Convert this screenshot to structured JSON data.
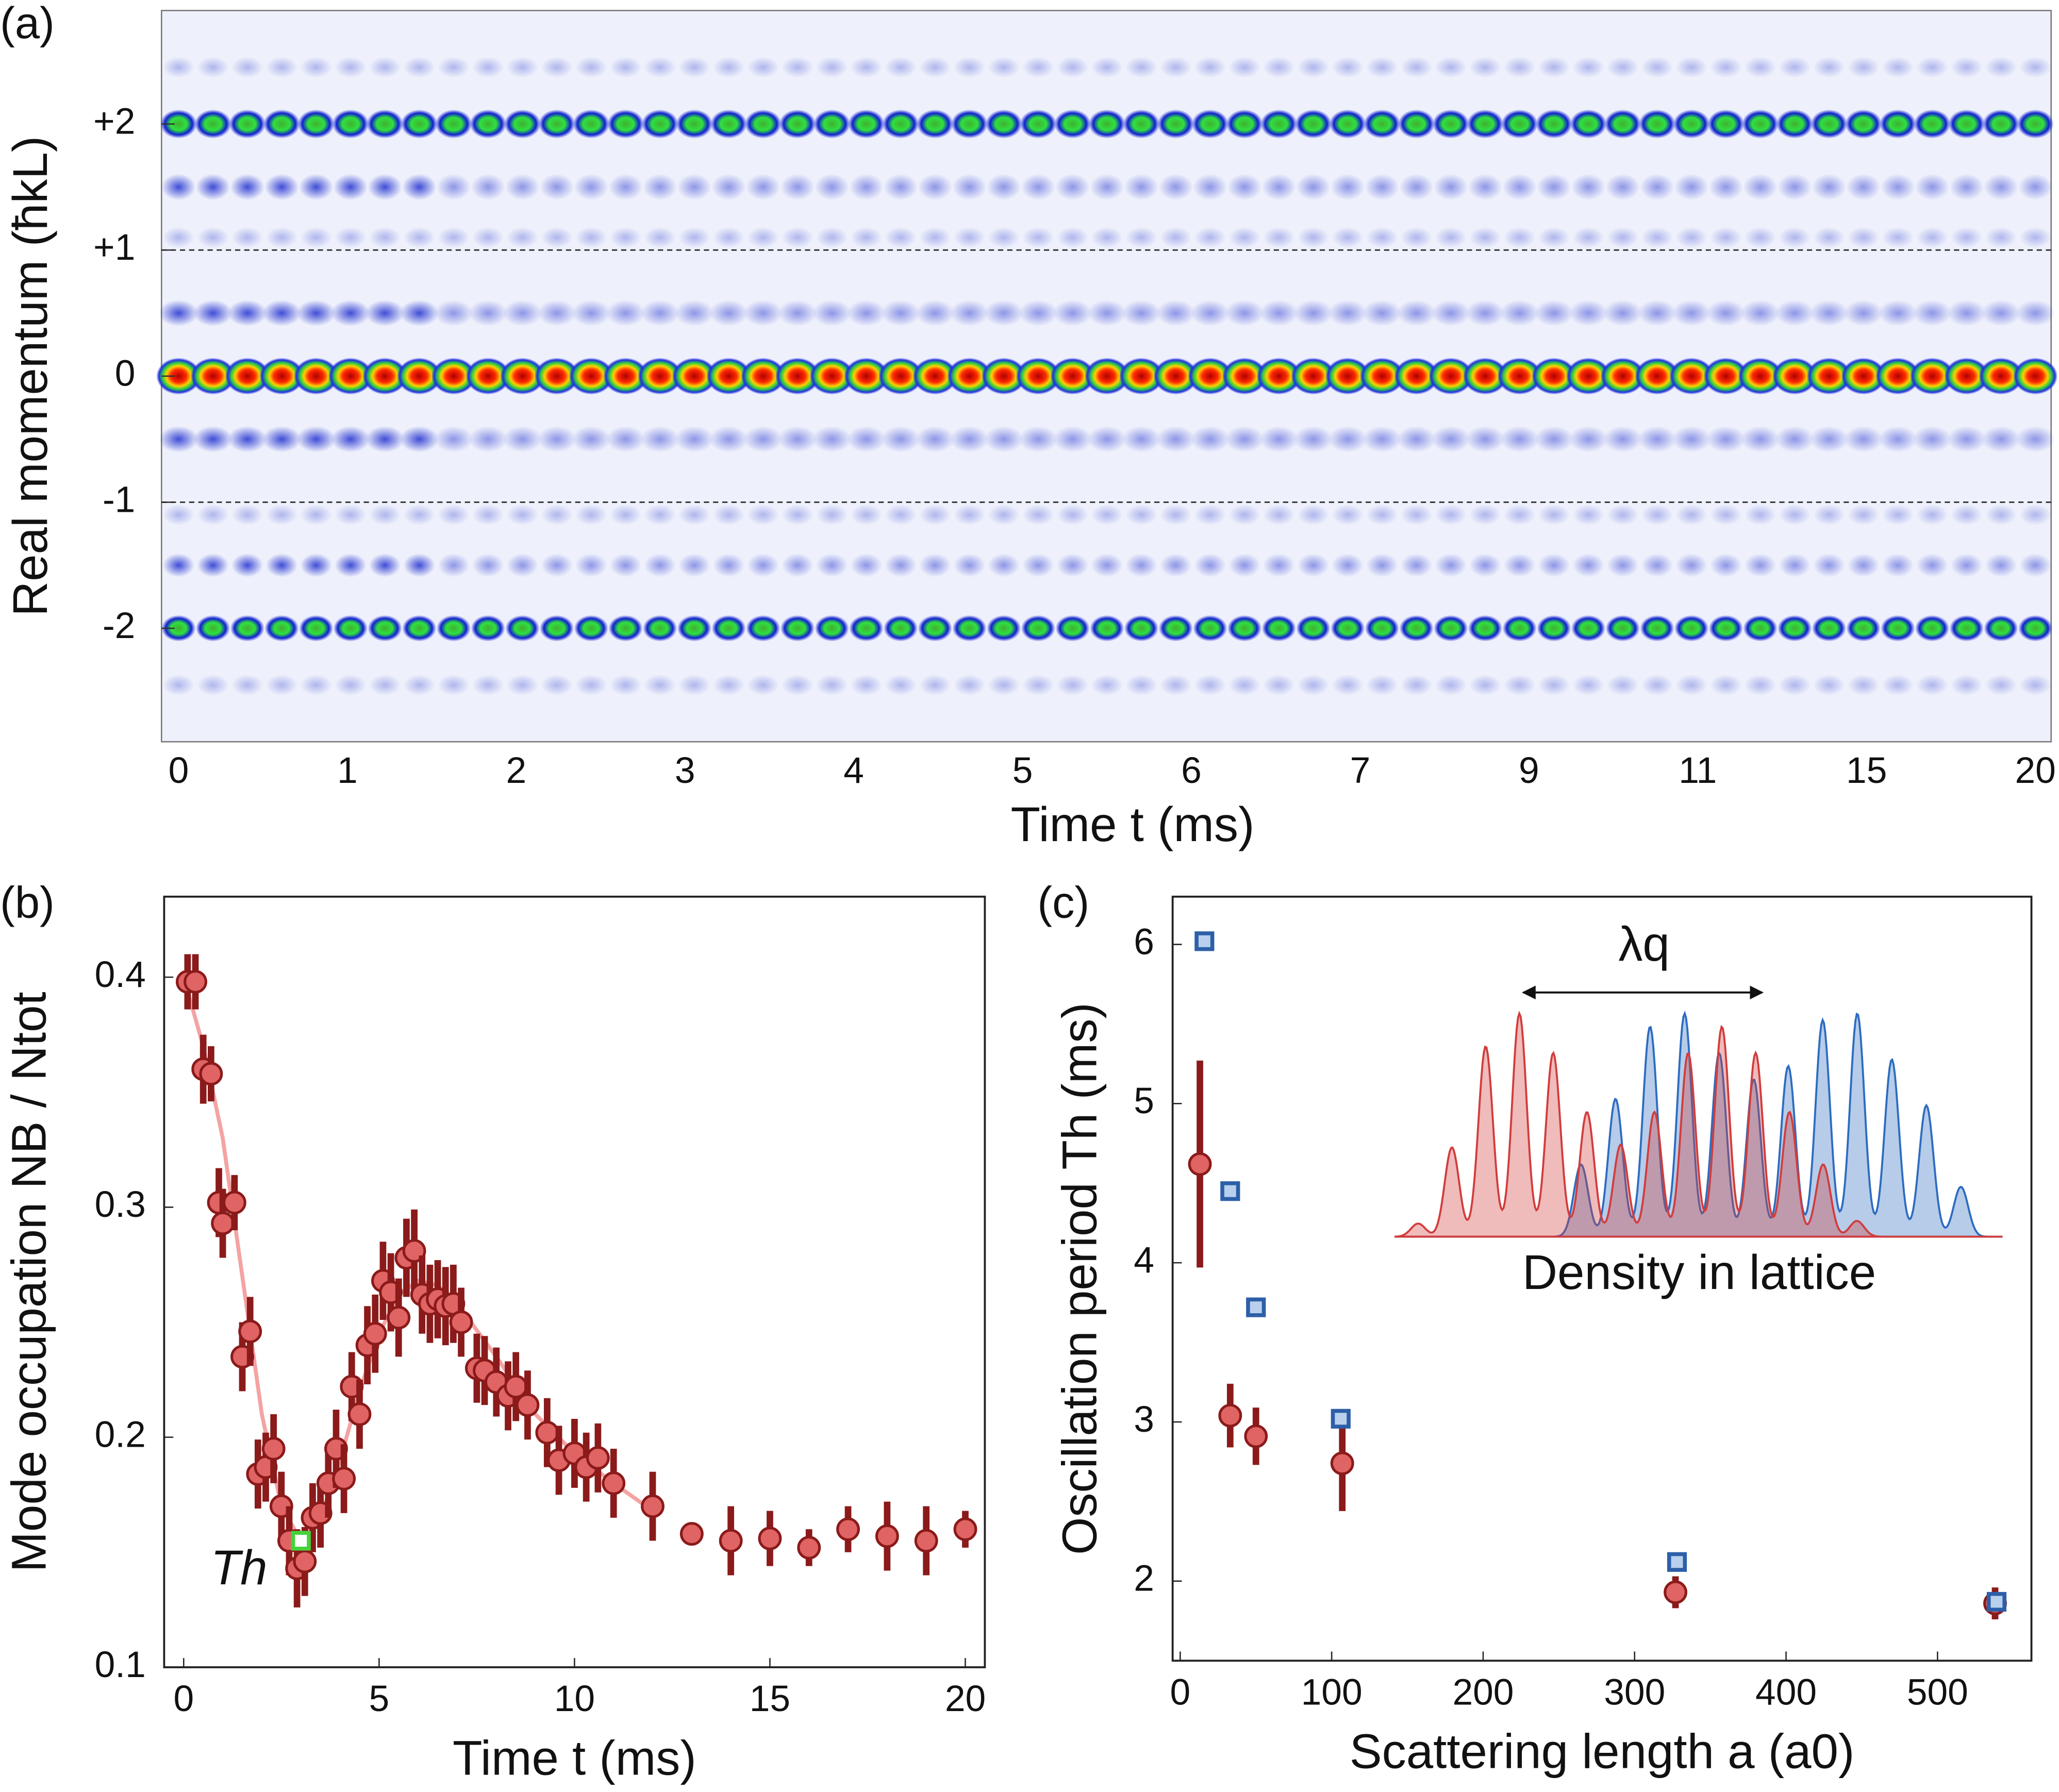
{
  "chart_data": [
    {
      "type": "image",
      "label": "(a)",
      "y_label": "Real momentum (ħkL)",
      "x_label": "Time t (ms)",
      "categories": [
        "0",
        "1",
        "2",
        "3",
        "4",
        "5",
        "6",
        "7",
        "9",
        "11",
        "15",
        "20"
      ],
      "ylim": [
        -2.9,
        2.9
      ],
      "yticks": [
        {
          "value": 2,
          "label": "+2"
        },
        {
          "value": 1,
          "label": "+1"
        },
        0,
        -1,
        -2
      ]
    },
    {
      "type": "scatter",
      "label": "(b)",
      "y_label": "Mode occupation NB / Ntot",
      "x_label": "Time t (ms)",
      "annotation": "Th",
      "xlim": [
        -0.5,
        20.5
      ],
      "xticks": [
        0,
        5,
        10,
        15,
        20
      ],
      "ylim": [
        0.1,
        0.435
      ],
      "yticks": [
        0.1,
        0.2,
        0.3,
        0.4
      ],
      "series": [
        {
          "marker": "line",
          "color": "#f4a3a3",
          "x": [
            0,
            0.5,
            1,
            1.5,
            2,
            2.5,
            3,
            3.5,
            4,
            4.5,
            5,
            5.5,
            6,
            6.5,
            7,
            8,
            9,
            10,
            11,
            12
          ],
          "values": [
            0.4,
            0.37,
            0.33,
            0.27,
            0.21,
            0.17,
            0.155,
            0.165,
            0.19,
            0.22,
            0.245,
            0.262,
            0.268,
            0.266,
            0.258,
            0.235,
            0.21,
            0.193,
            0.18,
            0.168
          ]
        },
        {
          "marker": "circle",
          "color": "#e06464",
          "edge_color": "#8b1a1a",
          "x": [
            0.1,
            0.3,
            0.5,
            0.7,
            0.9,
            1.0,
            1.3,
            1.5,
            1.7,
            1.9,
            2.1,
            2.3,
            2.5,
            2.7,
            2.9,
            3.1,
            3.3,
            3.5,
            3.7,
            3.9,
            4.1,
            4.3,
            4.5,
            4.7,
            4.9,
            5.1,
            5.3,
            5.5,
            5.7,
            5.9,
            6.1,
            6.3,
            6.5,
            6.7,
            6.9,
            7.1,
            7.5,
            7.7,
            8.0,
            8.3,
            8.5,
            8.8,
            9.3,
            9.6,
            10.0,
            10.3,
            10.6,
            11.0,
            12,
            13,
            14,
            15,
            16,
            17,
            18,
            19,
            20
          ],
          "values": [
            0.398,
            0.398,
            0.36,
            0.358,
            0.302,
            0.293,
            0.302,
            0.235,
            0.246,
            0.184,
            0.187,
            0.195,
            0.17,
            0.155,
            0.143,
            0.146,
            0.165,
            0.167,
            0.18,
            0.195,
            0.182,
            0.222,
            0.21,
            0.24,
            0.245,
            0.268,
            0.263,
            0.252,
            0.278,
            0.281,
            0.262,
            0.258,
            0.26,
            0.257,
            0.258,
            0.25,
            0.23,
            0.229,
            0.224,
            0.218,
            0.222,
            0.214,
            0.202,
            0.19,
            0.193,
            0.187,
            0.191,
            0.18,
            0.17,
            0.158,
            0.155,
            0.156,
            0.152,
            0.16,
            0.157,
            0.155,
            0.16
          ],
          "errors": [
            0.012,
            0.012,
            0.015,
            0.012,
            0.015,
            0.015,
            0.012,
            0.015,
            0.015,
            0.015,
            0.015,
            0.015,
            0.015,
            0.015,
            0.017,
            0.015,
            0.015,
            0.015,
            0.015,
            0.017,
            0.015,
            0.015,
            0.015,
            0.017,
            0.017,
            0.017,
            0.017,
            0.017,
            0.017,
            0.018,
            0.017,
            0.017,
            0.017,
            0.017,
            0.017,
            0.015,
            0.015,
            0.015,
            0.015,
            0.015,
            0.015,
            0.015,
            0.015,
            0.015,
            0.015,
            0.015,
            0.015,
            0.015,
            0.015,
            0.005,
            0.015,
            0.012,
            0.008,
            0.01,
            0.015,
            0.015,
            0.008
          ]
        },
        {
          "marker": "square",
          "color": "#ffffff",
          "edge_color": "#46d23c",
          "x": [
            3.0
          ],
          "values": [
            0.155
          ]
        }
      ]
    },
    {
      "type": "scatter",
      "label": "(c)",
      "y_label": "Oscillation period Th (ms)",
      "x_label": "Scattering length a (a0)",
      "inset_label": "λq",
      "inset_caption": "Density in lattice",
      "xlim": [
        -5,
        562
      ],
      "xticks": [
        0,
        100,
        200,
        300,
        400,
        500
      ],
      "ylim": [
        1.5,
        6.3
      ],
      "yticks": [
        2,
        3,
        4,
        5,
        6
      ],
      "series": [
        {
          "marker": "circle",
          "color": "#e06464",
          "edge_color": "#8b1a1a",
          "x": [
            13,
            33,
            50,
            107,
            327,
            538
          ],
          "values": [
            4.62,
            3.04,
            2.91,
            2.74,
            1.93,
            1.86
          ],
          "errors": [
            0.65,
            0.2,
            0.18,
            0.3,
            0.1,
            0.1
          ]
        },
        {
          "marker": "square",
          "color": "#b8d0ee",
          "edge_color": "#2d5fa8",
          "x": [
            16,
            33,
            50,
            106,
            328,
            539
          ],
          "values": [
            6.02,
            4.45,
            3.72,
            3.02,
            2.12,
            1.87
          ]
        }
      ]
    }
  ]
}
